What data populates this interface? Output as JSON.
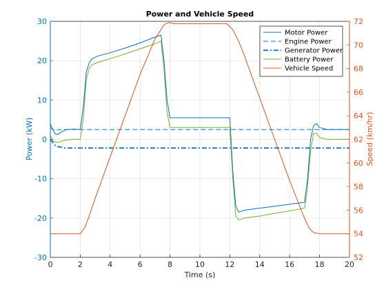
{
  "chart_data": {
    "type": "line",
    "title": "Power and Vehicle Speed",
    "xlabel": "Time (s)",
    "ylabel_left": "Power (kW)",
    "ylabel_right": "Speed (km/hr)",
    "xlim": [
      0,
      20
    ],
    "ylim_left": [
      -30,
      30
    ],
    "ylim_right": [
      52,
      72
    ],
    "x_ticks": [
      0,
      2,
      4,
      6,
      8,
      10,
      12,
      14,
      16,
      18,
      20
    ],
    "y_left_ticks": [
      -30,
      -20,
      -10,
      0,
      10,
      20,
      30
    ],
    "y_right_ticks": [
      52,
      54,
      56,
      58,
      60,
      62,
      64,
      66,
      68,
      70,
      72
    ],
    "grid": true,
    "legend_position": "top-right",
    "colors": {
      "left_axis": "#0072BD",
      "right_axis": "#D95319",
      "motor": "#0072BD",
      "engine": "#0072BD",
      "generator": "#0072BD",
      "battery": "#77AC30",
      "speed": "#D95319"
    },
    "series": [
      {
        "name": "Motor Power",
        "axis": "left",
        "dash": "solid",
        "x": [
          0,
          0.1,
          0.3,
          0.5,
          0.7,
          1.0,
          1.5,
          2.0,
          2.2,
          2.4,
          2.6,
          2.8,
          3.2,
          4.0,
          5.0,
          6.0,
          7.0,
          7.4,
          7.6,
          7.8,
          8.0,
          8.5,
          10.0,
          11.9,
          12.0,
          12.2,
          12.4,
          12.6,
          13.0,
          14.0,
          15.0,
          16.0,
          17.0,
          17.2,
          17.4,
          17.6,
          17.8,
          18.0,
          18.5,
          20.0
        ],
        "y": [
          4,
          3,
          1.5,
          1.2,
          1.8,
          2.4,
          2.6,
          2.5,
          8,
          17,
          19.5,
          20.5,
          21.2,
          22,
          23.2,
          24.5,
          26,
          26.5,
          20,
          10,
          5.5,
          5.5,
          5.5,
          5.5,
          5.5,
          -8,
          -17,
          -18.5,
          -18,
          -17.5,
          -17,
          -16.5,
          -16,
          -10,
          0,
          3.5,
          4,
          3,
          2.5,
          2.5
        ]
      },
      {
        "name": "Engine Power",
        "axis": "left",
        "dash": "dashed",
        "x": [
          0,
          0.3,
          0.6,
          1.0,
          2.0,
          20.0
        ],
        "y": [
          3,
          2.2,
          2.5,
          2.5,
          2.5,
          2.5
        ]
      },
      {
        "name": "Generator Power",
        "axis": "left",
        "dash": "dashdot",
        "x": [
          0,
          0.2,
          0.4,
          0.7,
          1.0,
          2.0,
          20.0
        ],
        "y": [
          0,
          -1,
          -1.8,
          -2,
          -2.2,
          -2.2,
          -2.2
        ]
      },
      {
        "name": "Battery Power",
        "axis": "left",
        "dash": "solid",
        "x": [
          0,
          0.2,
          0.5,
          1.0,
          1.5,
          2.0,
          2.2,
          2.4,
          2.6,
          2.8,
          3.2,
          4.0,
          5.0,
          6.0,
          7.0,
          7.4,
          7.6,
          7.8,
          8.0,
          8.5,
          10.0,
          11.9,
          12.0,
          12.2,
          12.4,
          12.6,
          13.0,
          14.0,
          15.0,
          16.0,
          17.0,
          17.2,
          17.4,
          17.6,
          17.8,
          18.0,
          18.5,
          20.0
        ],
        "y": [
          1,
          -0.5,
          -0.8,
          -0.2,
          0,
          0,
          5,
          15,
          18,
          19,
          19.6,
          20.5,
          21.7,
          23,
          24.3,
          25,
          18,
          7,
          3,
          3,
          3,
          3,
          3,
          -10,
          -19.5,
          -20.5,
          -20,
          -19.5,
          -18.8,
          -18.2,
          -17.5,
          -12,
          -3,
          1.5,
          1.5,
          0.5,
          0,
          0
        ]
      },
      {
        "name": "Vehicle Speed",
        "axis": "right",
        "dash": "solid",
        "x": [
          0,
          2.0,
          2.3,
          2.6,
          3.0,
          4.0,
          5.0,
          6.0,
          7.0,
          7.6,
          7.9,
          8.3,
          9.0,
          10.0,
          11.0,
          11.8,
          12.2,
          12.6,
          13.0,
          14.0,
          15.0,
          16.0,
          17.0,
          17.3,
          17.6,
          18.0,
          18.5,
          20.0
        ],
        "y": [
          54,
          54,
          54.5,
          55.5,
          57,
          60.5,
          64,
          67.5,
          70.5,
          71.7,
          71.9,
          71.8,
          71.8,
          71.8,
          71.8,
          71.8,
          71.3,
          70.3,
          69,
          65.5,
          62,
          58.5,
          55.3,
          54.5,
          54.1,
          54,
          54,
          54
        ]
      }
    ]
  }
}
